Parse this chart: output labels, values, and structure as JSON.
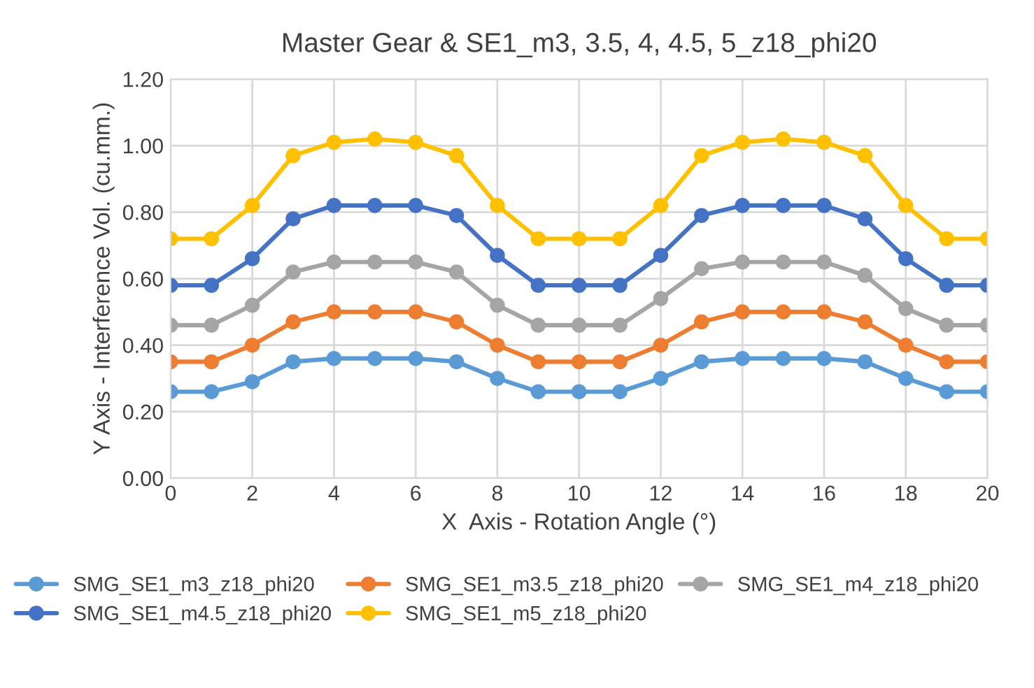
{
  "chart_data": {
    "type": "line",
    "title": "Master Gear & SE1_m3, 3.5, 4, 4.5, 5_z18_phi20",
    "xlabel": "X  Axis - Rotation Angle (°)",
    "ylabel": "Y Axis - Interference Vol. (cu.mm.)",
    "x": [
      0,
      1,
      2,
      3,
      4,
      5,
      6,
      7,
      8,
      9,
      10,
      11,
      12,
      13,
      14,
      15,
      16,
      17,
      18,
      19,
      20
    ],
    "series": [
      {
        "name": "SMG_SE1_m3_z18_phi20",
        "color": "#5b9bd5",
        "values": [
          0.26,
          0.26,
          0.29,
          0.35,
          0.36,
          0.36,
          0.36,
          0.35,
          0.3,
          0.26,
          0.26,
          0.26,
          0.3,
          0.35,
          0.36,
          0.36,
          0.36,
          0.35,
          0.3,
          0.26,
          0.26
        ]
      },
      {
        "name": "SMG_SE1_m3.5_z18_phi20",
        "color": "#ed7d31",
        "values": [
          0.35,
          0.35,
          0.4,
          0.47,
          0.5,
          0.5,
          0.5,
          0.47,
          0.4,
          0.35,
          0.35,
          0.35,
          0.4,
          0.47,
          0.5,
          0.5,
          0.5,
          0.47,
          0.4,
          0.35,
          0.35
        ]
      },
      {
        "name": "SMG_SE1_m4_z18_phi20",
        "color": "#a5a5a5",
        "values": [
          0.46,
          0.46,
          0.52,
          0.62,
          0.65,
          0.65,
          0.65,
          0.62,
          0.52,
          0.46,
          0.46,
          0.46,
          0.54,
          0.63,
          0.65,
          0.65,
          0.65,
          0.61,
          0.51,
          0.46,
          0.46
        ]
      },
      {
        "name": "SMG_SE1_m4.5_z18_phi20",
        "color": "#4472c4",
        "values": [
          0.58,
          0.58,
          0.66,
          0.78,
          0.82,
          0.82,
          0.82,
          0.79,
          0.67,
          0.58,
          0.58,
          0.58,
          0.67,
          0.79,
          0.82,
          0.82,
          0.82,
          0.78,
          0.66,
          0.58,
          0.58
        ]
      },
      {
        "name": "SMG_SE1_m5_z18_phi20",
        "color": "#ffc000",
        "values": [
          0.72,
          0.72,
          0.82,
          0.97,
          1.01,
          1.02,
          1.01,
          0.97,
          0.82,
          0.72,
          0.72,
          0.72,
          0.82,
          0.97,
          1.01,
          1.02,
          1.01,
          0.97,
          0.82,
          0.72,
          0.72
        ]
      }
    ],
    "xlim": [
      0,
      20
    ],
    "xticks": [
      0,
      2,
      4,
      6,
      8,
      10,
      12,
      14,
      16,
      18,
      20
    ],
    "ylim": [
      0,
      1.2
    ],
    "yticks": [
      {
        "value": 0,
        "label": "0.00"
      },
      {
        "value": 0.2,
        "label": "0.20"
      },
      {
        "value": 0.4,
        "label": "0.40"
      },
      {
        "value": 0.6,
        "label": "0.60"
      },
      {
        "value": 0.8,
        "label": "0.80"
      },
      {
        "value": 1.0,
        "label": "1.00"
      },
      {
        "value": 1.2,
        "label": "1.20"
      }
    ],
    "grid": true,
    "legend": "bottom",
    "marker": "circle",
    "line_style": "solid"
  }
}
